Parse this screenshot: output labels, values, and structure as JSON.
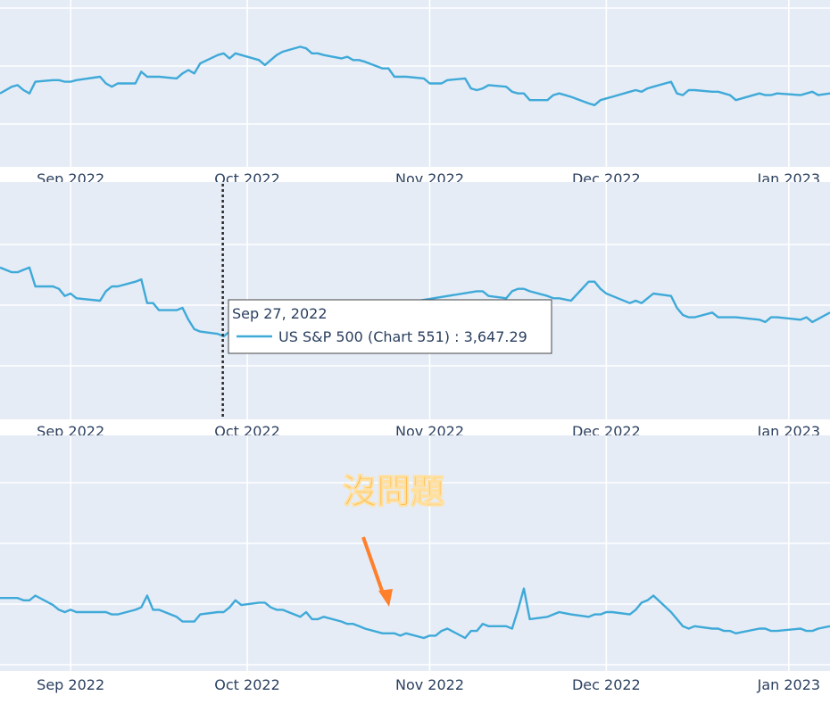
{
  "chart_data": [
    {
      "type": "line",
      "title": "",
      "x_tick_labels": [
        "Sep 2022",
        "Oct 2022",
        "Nov 2022",
        "Dec 2022",
        "Jan 2023"
      ],
      "x_ticks": [
        "2022-09-01",
        "2022-10-01",
        "2022-11-01",
        "2022-12-01",
        "2023-01-01"
      ],
      "xlim": [
        "2022-08-20",
        "2023-01-08"
      ],
      "ylim": [
        0,
        100
      ],
      "grid": true,
      "series": [
        {
          "color": "#3fa9d8",
          "x": [
            "2022-08-20",
            "2022-08-22",
            "2022-08-23",
            "2022-08-24",
            "2022-08-25",
            "2022-08-26",
            "2022-08-29",
            "2022-08-30",
            "2022-08-31",
            "2022-09-01",
            "2022-09-02",
            "2022-09-06",
            "2022-09-07",
            "2022-09-08",
            "2022-09-09",
            "2022-09-12",
            "2022-09-13",
            "2022-09-14",
            "2022-09-15",
            "2022-09-16",
            "2022-09-19",
            "2022-09-20",
            "2022-09-21",
            "2022-09-22",
            "2022-09-23",
            "2022-09-26",
            "2022-09-27",
            "2022-09-28",
            "2022-09-29",
            "2022-09-30",
            "2022-10-03",
            "2022-10-04",
            "2022-10-05",
            "2022-10-06",
            "2022-10-07",
            "2022-10-10",
            "2022-10-11",
            "2022-10-12",
            "2022-10-13",
            "2022-10-14",
            "2022-10-17",
            "2022-10-18",
            "2022-10-19",
            "2022-10-20",
            "2022-10-21",
            "2022-10-24",
            "2022-10-25",
            "2022-10-26",
            "2022-10-27",
            "2022-10-28",
            "2022-10-31",
            "2022-11-01",
            "2022-11-02",
            "2022-11-03",
            "2022-11-04",
            "2022-11-07",
            "2022-11-08",
            "2022-11-09",
            "2022-11-10",
            "2022-11-11",
            "2022-11-14",
            "2022-11-15",
            "2022-11-16",
            "2022-11-17",
            "2022-11-18",
            "2022-11-21",
            "2022-11-22",
            "2022-11-23",
            "2022-11-25",
            "2022-11-28",
            "2022-11-29",
            "2022-11-30",
            "2022-12-01",
            "2022-12-02",
            "2022-12-05",
            "2022-12-06",
            "2022-12-07",
            "2022-12-08",
            "2022-12-09",
            "2022-12-12",
            "2022-12-13",
            "2022-12-14",
            "2022-12-15",
            "2022-12-16",
            "2022-12-19",
            "2022-12-20",
            "2022-12-21",
            "2022-12-22",
            "2022-12-23",
            "2022-12-27",
            "2022-12-28",
            "2022-12-29",
            "2022-12-30",
            "2023-01-03",
            "2023-01-04",
            "2023-01-05",
            "2023-01-06",
            "2023-01-08"
          ],
          "y": [
            44,
            48,
            49,
            46,
            44,
            51,
            52,
            52,
            51,
            51,
            52,
            54,
            50,
            48,
            50,
            50,
            57,
            54,
            54,
            54,
            53,
            56,
            58,
            56,
            62,
            67,
            68,
            65,
            68,
            67,
            64,
            61,
            64,
            67,
            69,
            72,
            71,
            68,
            68,
            67,
            65,
            66,
            64,
            64,
            63,
            59,
            59,
            54,
            54,
            54,
            53,
            50,
            50,
            50,
            52,
            53,
            47,
            46,
            47,
            49,
            48,
            45,
            44,
            44,
            40,
            40,
            43,
            44,
            42,
            38,
            37,
            40,
            41,
            42,
            45,
            46,
            45,
            47,
            48,
            51,
            44,
            43,
            46,
            46,
            45,
            45,
            44,
            43,
            40,
            44,
            43,
            43,
            44,
            43,
            44,
            45,
            43,
            44
          ],
          "y_note": "normalized 0-100 within panel"
        }
      ]
    },
    {
      "type": "line",
      "title": "",
      "x_tick_labels": [
        "Sep 2022",
        "Oct 2022",
        "Nov 2022",
        "Dec 2022",
        "Jan 2023"
      ],
      "xlim": [
        "2022-08-20",
        "2023-01-08"
      ],
      "ylim": [
        0,
        100
      ],
      "grid": true,
      "hover": {
        "date": "Sep 27, 2022",
        "label": "US  S&P 500 (Chart 551) : 3,647.29",
        "x": "2022-09-27"
      },
      "series": [
        {
          "name": "US  S&P 500 (Chart 551)",
          "color": "#3fa9d8",
          "x": [
            "2022-08-20",
            "2022-08-22",
            "2022-08-23",
            "2022-08-24",
            "2022-08-25",
            "2022-08-26",
            "2022-08-29",
            "2022-08-30",
            "2022-08-31",
            "2022-09-01",
            "2022-09-02",
            "2022-09-06",
            "2022-09-07",
            "2022-09-08",
            "2022-09-09",
            "2022-09-12",
            "2022-09-13",
            "2022-09-14",
            "2022-09-15",
            "2022-09-16",
            "2022-09-19",
            "2022-09-20",
            "2022-09-21",
            "2022-09-22",
            "2022-09-23",
            "2022-09-26",
            "2022-09-27",
            "2022-09-28",
            "2022-11-09",
            "2022-11-10",
            "2022-11-11",
            "2022-11-14",
            "2022-11-15",
            "2022-11-16",
            "2022-11-17",
            "2022-11-18",
            "2022-11-21",
            "2022-11-22",
            "2022-11-23",
            "2022-11-25",
            "2022-11-28",
            "2022-11-29",
            "2022-11-30",
            "2022-12-01",
            "2022-12-02",
            "2022-12-05",
            "2022-12-06",
            "2022-12-07",
            "2022-12-08",
            "2022-12-09",
            "2022-12-12",
            "2022-12-13",
            "2022-12-14",
            "2022-12-15",
            "2022-12-16",
            "2022-12-19",
            "2022-12-20",
            "2022-12-21",
            "2022-12-22",
            "2022-12-23",
            "2022-12-27",
            "2022-12-28",
            "2022-12-29",
            "2022-12-30",
            "2023-01-03",
            "2023-01-04",
            "2023-01-05",
            "2023-01-08"
          ],
          "y": [
            64,
            62,
            62,
            63,
            64,
            56,
            56,
            55,
            52,
            53,
            51,
            50,
            54,
            56,
            56,
            58,
            59,
            49,
            49,
            46,
            46,
            47,
            42,
            38,
            37,
            36,
            35,
            37,
            54,
            54,
            52,
            51,
            54,
            55,
            55,
            54,
            52,
            51,
            51,
            50,
            58,
            58,
            55,
            53,
            52,
            49,
            50,
            49,
            51,
            53,
            52,
            47,
            44,
            43,
            43,
            45,
            43,
            43,
            43,
            43,
            42,
            41,
            43,
            43,
            42,
            43,
            41,
            45
          ],
          "y_note": "normalized 0-100 within panel"
        }
      ]
    },
    {
      "type": "line",
      "title": "",
      "x_tick_labels": [
        "Sep 2022",
        "Oct 2022",
        "Nov 2022",
        "Dec 2022",
        "Jan 2023"
      ],
      "xlim": [
        "2022-08-20",
        "2023-01-08"
      ],
      "ylim": [
        0,
        100
      ],
      "grid": true,
      "annotation": {
        "text": "沒問題",
        "arrow_color": "#ff7f2a",
        "points_to": "2022-10-26"
      },
      "series": [
        {
          "color": "#3fa9d8",
          "x": [
            "2022-08-20",
            "2022-08-22",
            "2022-08-23",
            "2022-08-24",
            "2022-08-25",
            "2022-08-26",
            "2022-08-29",
            "2022-08-30",
            "2022-08-31",
            "2022-09-01",
            "2022-09-02",
            "2022-09-06",
            "2022-09-07",
            "2022-09-08",
            "2022-09-09",
            "2022-09-12",
            "2022-09-13",
            "2022-09-14",
            "2022-09-15",
            "2022-09-16",
            "2022-09-19",
            "2022-09-20",
            "2022-09-21",
            "2022-09-22",
            "2022-09-23",
            "2022-09-26",
            "2022-09-27",
            "2022-09-28",
            "2022-09-29",
            "2022-09-30",
            "2022-10-03",
            "2022-10-04",
            "2022-10-05",
            "2022-10-06",
            "2022-10-07",
            "2022-10-10",
            "2022-10-11",
            "2022-10-12",
            "2022-10-13",
            "2022-10-14",
            "2022-10-17",
            "2022-10-18",
            "2022-10-19",
            "2022-10-20",
            "2022-10-21",
            "2022-10-24",
            "2022-10-25",
            "2022-10-26",
            "2022-10-27",
            "2022-10-28",
            "2022-10-31",
            "2022-11-01",
            "2022-11-02",
            "2022-11-03",
            "2022-11-04",
            "2022-11-07",
            "2022-11-08",
            "2022-11-09",
            "2022-11-10",
            "2022-11-11",
            "2022-11-14",
            "2022-11-15",
            "2022-11-16",
            "2022-11-17",
            "2022-11-18",
            "2022-11-21",
            "2022-11-22",
            "2022-11-23",
            "2022-11-25",
            "2022-11-28",
            "2022-11-29",
            "2022-11-30",
            "2022-12-01",
            "2022-12-02",
            "2022-12-05",
            "2022-12-06",
            "2022-12-07",
            "2022-12-08",
            "2022-12-09",
            "2022-12-12",
            "2022-12-13",
            "2022-12-14",
            "2022-12-15",
            "2022-12-16",
            "2022-12-19",
            "2022-12-20",
            "2022-12-21",
            "2022-12-22",
            "2022-12-23",
            "2022-12-27",
            "2022-12-28",
            "2022-12-29",
            "2022-12-30",
            "2023-01-03",
            "2023-01-04",
            "2023-01-05",
            "2023-01-06",
            "2023-01-08"
          ],
          "y": [
            31,
            31,
            31,
            30,
            30,
            32,
            28,
            26,
            25,
            26,
            25,
            25,
            25,
            24,
            24,
            26,
            27,
            32,
            26,
            26,
            23,
            21,
            21,
            21,
            24,
            25,
            25,
            27,
            30,
            28,
            29,
            29,
            27,
            26,
            26,
            23,
            25,
            22,
            22,
            23,
            21,
            20,
            20,
            19,
            18,
            16,
            16,
            16,
            15,
            16,
            14,
            15,
            15,
            17,
            18,
            14,
            17,
            17,
            20,
            19,
            19,
            18,
            26,
            35,
            22,
            23,
            24,
            25,
            24,
            23,
            24,
            24,
            25,
            25,
            24,
            26,
            29,
            30,
            32,
            25,
            22,
            19,
            18,
            19,
            18,
            18,
            17,
            17,
            16,
            18,
            18,
            17,
            17,
            18,
            17,
            17,
            18,
            19
          ],
          "y_note": "normalized 0-100 within panel"
        }
      ]
    }
  ]
}
